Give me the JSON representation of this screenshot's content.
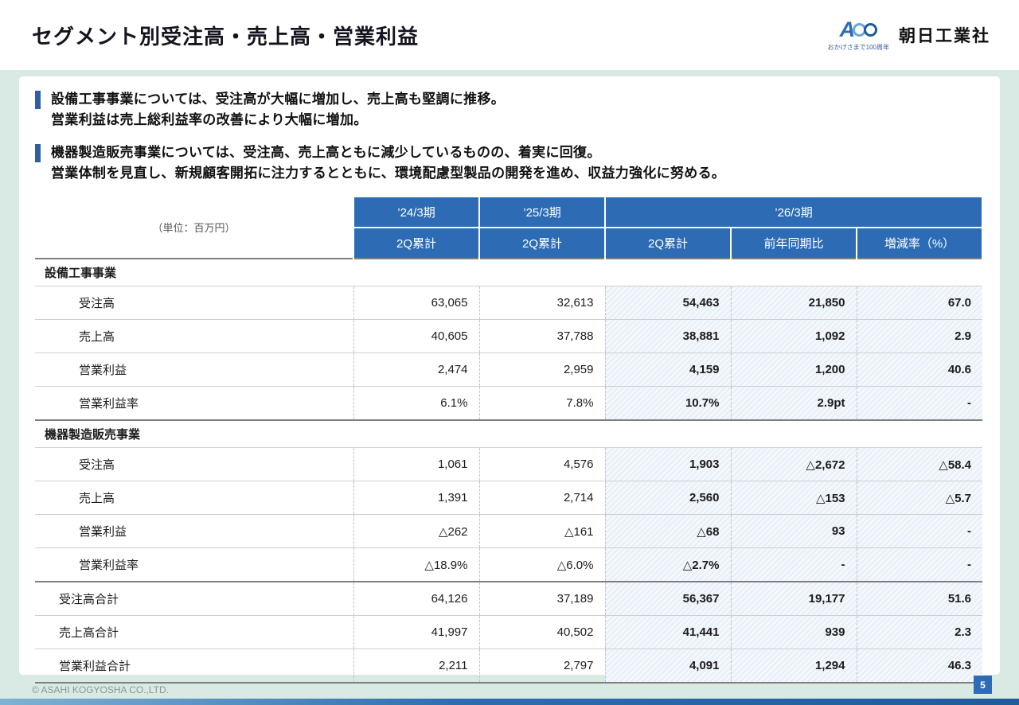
{
  "page": {
    "title": "セグメント別受注高・売上高・営業利益",
    "footer": "© ASAHI KOGYOSHA CO.,LTD.",
    "page_number": "5"
  },
  "logo": {
    "mark": "A",
    "tagline": "おかげさまで100周年",
    "company": "朝日工業社"
  },
  "bullets": [
    {
      "line1": "設備工事事業については、受注高が大幅に増加し、売上高も堅調に推移。",
      "line2": "営業利益は売上総利益率の改善により大幅に増加。"
    },
    {
      "line1": "機器製造販売事業については、受注高、売上高ともに減少しているものの、着実に回復。",
      "line2": "営業体制を見直し、新規顧客開拓に注力するとともに、環境配慮型製品の開発を進め、収益力強化に努める。"
    }
  ],
  "table": {
    "unit_label": "（単位：百万円）",
    "col_groups": [
      "’24/3期",
      "’25/3期",
      "’26/3期"
    ],
    "sub_headers": [
      "2Q累計",
      "2Q累計",
      "2Q累計",
      "前年同期比",
      "増減率（%）"
    ],
    "sections": [
      {
        "name": "設備工事事業",
        "rows": [
          {
            "label": "受注高",
            "values": [
              "63,065",
              "32,613",
              "54,463",
              "21,850",
              "67.0"
            ]
          },
          {
            "label": "売上高",
            "values": [
              "40,605",
              "37,788",
              "38,881",
              "1,092",
              "2.9"
            ]
          },
          {
            "label": "営業利益",
            "values": [
              "2,474",
              "2,959",
              "4,159",
              "1,200",
              "40.6"
            ]
          },
          {
            "label": "営業利益率",
            "values": [
              "6.1%",
              "7.8%",
              "10.7%",
              "2.9pt",
              "-"
            ]
          }
        ]
      },
      {
        "name": "機器製造販売事業",
        "rows": [
          {
            "label": "受注高",
            "values": [
              "1,061",
              "4,576",
              "1,903",
              "△2,672",
              "△58.4"
            ]
          },
          {
            "label": "売上高",
            "values": [
              "1,391",
              "2,714",
              "2,560",
              "△153",
              "△5.7"
            ]
          },
          {
            "label": "営業利益",
            "values": [
              "△262",
              "△161",
              "△68",
              "93",
              "-"
            ]
          },
          {
            "label": "営業利益率",
            "values": [
              "△18.9%",
              "△6.0%",
              "△2.7%",
              "-",
              "-"
            ]
          }
        ]
      }
    ],
    "totals": [
      {
        "label": "受注高合計",
        "values": [
          "64,126",
          "37,189",
          "56,367",
          "19,177",
          "51.6"
        ]
      },
      {
        "label": "売上高合計",
        "values": [
          "41,997",
          "40,502",
          "41,441",
          "939",
          "2.3"
        ]
      },
      {
        "label": "営業利益合計",
        "values": [
          "2,211",
          "2,797",
          "4,091",
          "1,294",
          "46.3"
        ]
      }
    ]
  },
  "colors": {
    "header_blue": "#2d6cb4",
    "background_mint": "#d9e9e4",
    "bullet_bar": "#2e5fa3",
    "highlight_column": "#eaf0f9"
  }
}
